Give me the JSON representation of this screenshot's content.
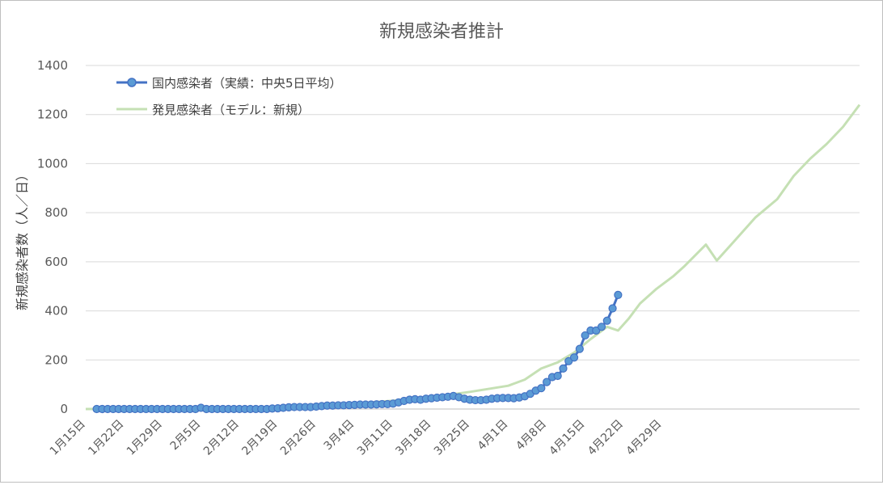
{
  "chart_data": {
    "type": "line",
    "title": "新規感染者推計",
    "xlabel": "",
    "ylabel": "新規感染者数（人／日）",
    "ylim": [
      0,
      1400
    ],
    "yticks": [
      0,
      200,
      400,
      600,
      800,
      1000,
      1200,
      1400
    ],
    "grid": true,
    "legend_position": "top-left",
    "x_tick_labels": [
      "1月15日",
      "1月22日",
      "1月29日",
      "2月5日",
      "2月12日",
      "2月19日",
      "2月26日",
      "3月4日",
      "3月11日",
      "3月18日",
      "3月25日",
      "4月1日",
      "4月8日",
      "4月15日",
      "4月22日",
      "4月29日"
    ],
    "series": [
      {
        "name": "国内感染者（実績：中央5日平均）",
        "color": "#4472c4",
        "marker": "circle",
        "start_date": "1月17日",
        "values": [
          0,
          0,
          0,
          0,
          0,
          0,
          0,
          0,
          0,
          0,
          0,
          0,
          0,
          0,
          0,
          0,
          0,
          0,
          0,
          5,
          0,
          0,
          0,
          0,
          0,
          0,
          0,
          0,
          0,
          0,
          0,
          0,
          2,
          3,
          5,
          7,
          8,
          8,
          8,
          8,
          10,
          12,
          14,
          14,
          15,
          15,
          16,
          17,
          18,
          18,
          18,
          19,
          20,
          20,
          22,
          27,
          33,
          38,
          40,
          38,
          42,
          44,
          46,
          48,
          50,
          53,
          48,
          42,
          38,
          36,
          36,
          38,
          42,
          44,
          45,
          45,
          44,
          47,
          52,
          62,
          75,
          85,
          110,
          130,
          135,
          165,
          195,
          210,
          245,
          300,
          320,
          320,
          335,
          360,
          410,
          465
        ]
      },
      {
        "name": "発見感染者（モデル：新規）",
        "color": "#c5e0b4",
        "start_date": "1月15日",
        "points": [
          [
            0,
            0
          ],
          [
            7,
            1
          ],
          [
            14,
            1
          ],
          [
            21,
            2
          ],
          [
            28,
            3
          ],
          [
            35,
            6
          ],
          [
            42,
            12
          ],
          [
            49,
            22
          ],
          [
            56,
            34
          ],
          [
            63,
            48
          ],
          [
            70,
            70
          ],
          [
            77,
            95
          ],
          [
            80,
            120
          ],
          [
            83,
            165
          ],
          [
            86,
            190
          ],
          [
            89,
            230
          ],
          [
            92,
            285
          ],
          [
            95,
            335
          ],
          [
            97,
            320
          ],
          [
            99,
            370
          ],
          [
            101,
            430
          ],
          [
            104,
            490
          ],
          [
            107,
            540
          ],
          [
            109,
            580
          ],
          [
            113,
            670
          ],
          [
            115,
            605
          ],
          [
            118,
            680
          ],
          [
            122,
            780
          ],
          [
            126,
            855
          ],
          [
            129,
            950
          ],
          [
            132,
            1020
          ],
          [
            135,
            1080
          ],
          [
            138,
            1150
          ],
          [
            141,
            1240
          ]
        ]
      }
    ]
  }
}
